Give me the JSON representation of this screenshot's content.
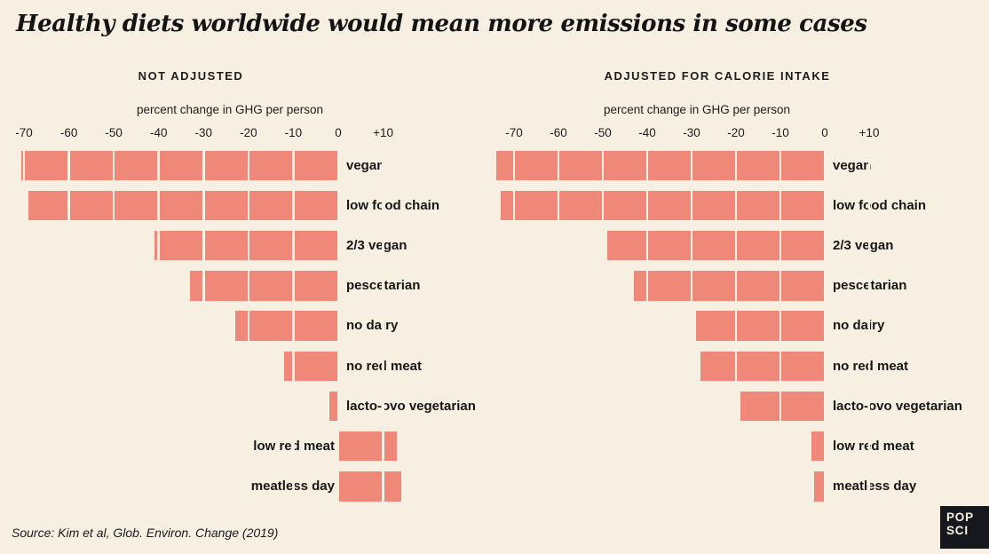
{
  "title": "Healthy diets worldwide would mean more emissions in some cases",
  "source": "Source: Kim et al, Glob. Environ. Change (2019)",
  "logo": {
    "line1": "POP",
    "line2": "SCI"
  },
  "colors": {
    "background": "#f6efe2",
    "bar": "#f0887a",
    "text": "#1b1b1b",
    "logo_bg": "#17171e",
    "logo_text": "#f6efe2"
  },
  "chart_data": [
    {
      "type": "bar",
      "orientation": "horizontal",
      "title": "NOT ADJUSTED",
      "xlabel": "percent change in GHG per person",
      "units": "percent",
      "categories": [
        "vegan",
        "low food chain",
        "2/3 vegan",
        "pescetarian",
        "no dairy",
        "no red meat",
        "lacto-ovo vegetarian",
        "low red meat",
        "meatless day"
      ],
      "values": [
        -70.5,
        -69,
        -41,
        -33,
        -23,
        -12,
        -2,
        13,
        14
      ],
      "axis_ticks": [
        "-70",
        "-60",
        "-50",
        "-40",
        "-30",
        "-20",
        "-10",
        "0",
        "+10"
      ],
      "tick_values": [
        -70,
        -60,
        -50,
        -40,
        -30,
        -20,
        -10,
        0,
        10
      ],
      "xlim": [
        -74,
        16
      ],
      "grid": true,
      "legend": false
    },
    {
      "type": "bar",
      "orientation": "horizontal",
      "title": "ADJUSTED FOR CALORIE INTAKE",
      "xlabel": "percent change in GHG per person",
      "units": "percent",
      "categories": [
        "vegan",
        "low food chain",
        "2/3 vegan",
        "pescetarian",
        "no dairy",
        "no red meat",
        "lacto-ovo vegetarian",
        "low red meat",
        "meatless day"
      ],
      "values": [
        -74,
        -73,
        -49,
        -43,
        -29,
        -28,
        -19,
        -3,
        -2.5
      ],
      "axis_ticks": [
        "-70",
        "-60",
        "-50",
        "-40",
        "-30",
        "-20",
        "-10",
        "0",
        "+10"
      ],
      "tick_values": [
        -70,
        -60,
        -50,
        -40,
        -30,
        -20,
        -10,
        0,
        10
      ],
      "xlim": [
        -74,
        16
      ],
      "grid": true,
      "legend": false
    }
  ]
}
